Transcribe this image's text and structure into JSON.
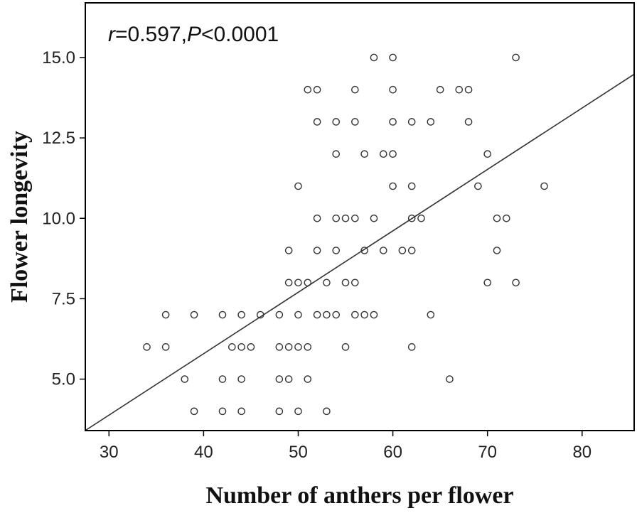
{
  "chart_data": {
    "type": "scatter",
    "title": "",
    "xlabel": "Number of anthers per flower",
    "ylabel": "Flower longevity",
    "xlim": [
      27.5,
      85.5
    ],
    "ylim": [
      3.4,
      16.7
    ],
    "xticks": [
      30,
      40,
      50,
      60,
      70,
      80
    ],
    "yticks": [
      5.0,
      7.5,
      10.0,
      12.5,
      15.0
    ],
    "xtick_labels": [
      "30",
      "40",
      "50",
      "60",
      "70",
      "80"
    ],
    "ytick_labels": [
      "5.0",
      "7.5",
      "10.0",
      "12.5",
      "15.0"
    ],
    "grid": false,
    "legend": "none",
    "annotation": {
      "r_symbol": "r",
      "r_text": "=0.597,",
      "p_symbol": "P",
      "p_text": "<0.0001"
    },
    "fit_line": {
      "slope": 0.191,
      "intercept": -1.85
    },
    "points": [
      {
        "x": 34,
        "y": 6
      },
      {
        "x": 36,
        "y": 7
      },
      {
        "x": 36,
        "y": 6
      },
      {
        "x": 38,
        "y": 5
      },
      {
        "x": 39,
        "y": 7
      },
      {
        "x": 39,
        "y": 4
      },
      {
        "x": 42,
        "y": 7
      },
      {
        "x": 42,
        "y": 5
      },
      {
        "x": 42,
        "y": 4
      },
      {
        "x": 43,
        "y": 6
      },
      {
        "x": 44,
        "y": 7
      },
      {
        "x": 44,
        "y": 6
      },
      {
        "x": 44,
        "y": 5
      },
      {
        "x": 44,
        "y": 4
      },
      {
        "x": 45,
        "y": 6
      },
      {
        "x": 46,
        "y": 7
      },
      {
        "x": 48,
        "y": 7
      },
      {
        "x": 48,
        "y": 6
      },
      {
        "x": 48,
        "y": 5
      },
      {
        "x": 48,
        "y": 4
      },
      {
        "x": 49,
        "y": 9
      },
      {
        "x": 49,
        "y": 8
      },
      {
        "x": 49,
        "y": 6
      },
      {
        "x": 49,
        "y": 5
      },
      {
        "x": 50,
        "y": 11
      },
      {
        "x": 50,
        "y": 8
      },
      {
        "x": 50,
        "y": 7
      },
      {
        "x": 50,
        "y": 6
      },
      {
        "x": 50,
        "y": 4
      },
      {
        "x": 51,
        "y": 14
      },
      {
        "x": 51,
        "y": 8
      },
      {
        "x": 51,
        "y": 6
      },
      {
        "x": 51,
        "y": 5
      },
      {
        "x": 52,
        "y": 14
      },
      {
        "x": 52,
        "y": 13
      },
      {
        "x": 52,
        "y": 10
      },
      {
        "x": 52,
        "y": 9
      },
      {
        "x": 52,
        "y": 7
      },
      {
        "x": 53,
        "y": 8
      },
      {
        "x": 53,
        "y": 7
      },
      {
        "x": 53,
        "y": 4
      },
      {
        "x": 54,
        "y": 13
      },
      {
        "x": 54,
        "y": 12
      },
      {
        "x": 54,
        "y": 10
      },
      {
        "x": 54,
        "y": 9
      },
      {
        "x": 54,
        "y": 7
      },
      {
        "x": 55,
        "y": 10
      },
      {
        "x": 55,
        "y": 8
      },
      {
        "x": 55,
        "y": 6
      },
      {
        "x": 56,
        "y": 14
      },
      {
        "x": 56,
        "y": 13
      },
      {
        "x": 56,
        "y": 10
      },
      {
        "x": 56,
        "y": 8
      },
      {
        "x": 56,
        "y": 7
      },
      {
        "x": 57,
        "y": 12
      },
      {
        "x": 57,
        "y": 9
      },
      {
        "x": 57,
        "y": 7
      },
      {
        "x": 58,
        "y": 15
      },
      {
        "x": 58,
        "y": 10
      },
      {
        "x": 58,
        "y": 7
      },
      {
        "x": 59,
        "y": 12
      },
      {
        "x": 59,
        "y": 9
      },
      {
        "x": 60,
        "y": 15
      },
      {
        "x": 60,
        "y": 14
      },
      {
        "x": 60,
        "y": 13
      },
      {
        "x": 60,
        "y": 12
      },
      {
        "x": 60,
        "y": 11
      },
      {
        "x": 61,
        "y": 9
      },
      {
        "x": 62,
        "y": 13
      },
      {
        "x": 62,
        "y": 11
      },
      {
        "x": 62,
        "y": 10
      },
      {
        "x": 62,
        "y": 9
      },
      {
        "x": 62,
        "y": 6
      },
      {
        "x": 63,
        "y": 10
      },
      {
        "x": 64,
        "y": 13
      },
      {
        "x": 64,
        "y": 7
      },
      {
        "x": 65,
        "y": 14
      },
      {
        "x": 66,
        "y": 5
      },
      {
        "x": 67,
        "y": 14
      },
      {
        "x": 68,
        "y": 14
      },
      {
        "x": 68,
        "y": 13
      },
      {
        "x": 69,
        "y": 11
      },
      {
        "x": 70,
        "y": 12
      },
      {
        "x": 70,
        "y": 8
      },
      {
        "x": 71,
        "y": 10
      },
      {
        "x": 71,
        "y": 9
      },
      {
        "x": 72,
        "y": 10
      },
      {
        "x": 73,
        "y": 15
      },
      {
        "x": 73,
        "y": 8
      },
      {
        "x": 76,
        "y": 11
      }
    ]
  }
}
